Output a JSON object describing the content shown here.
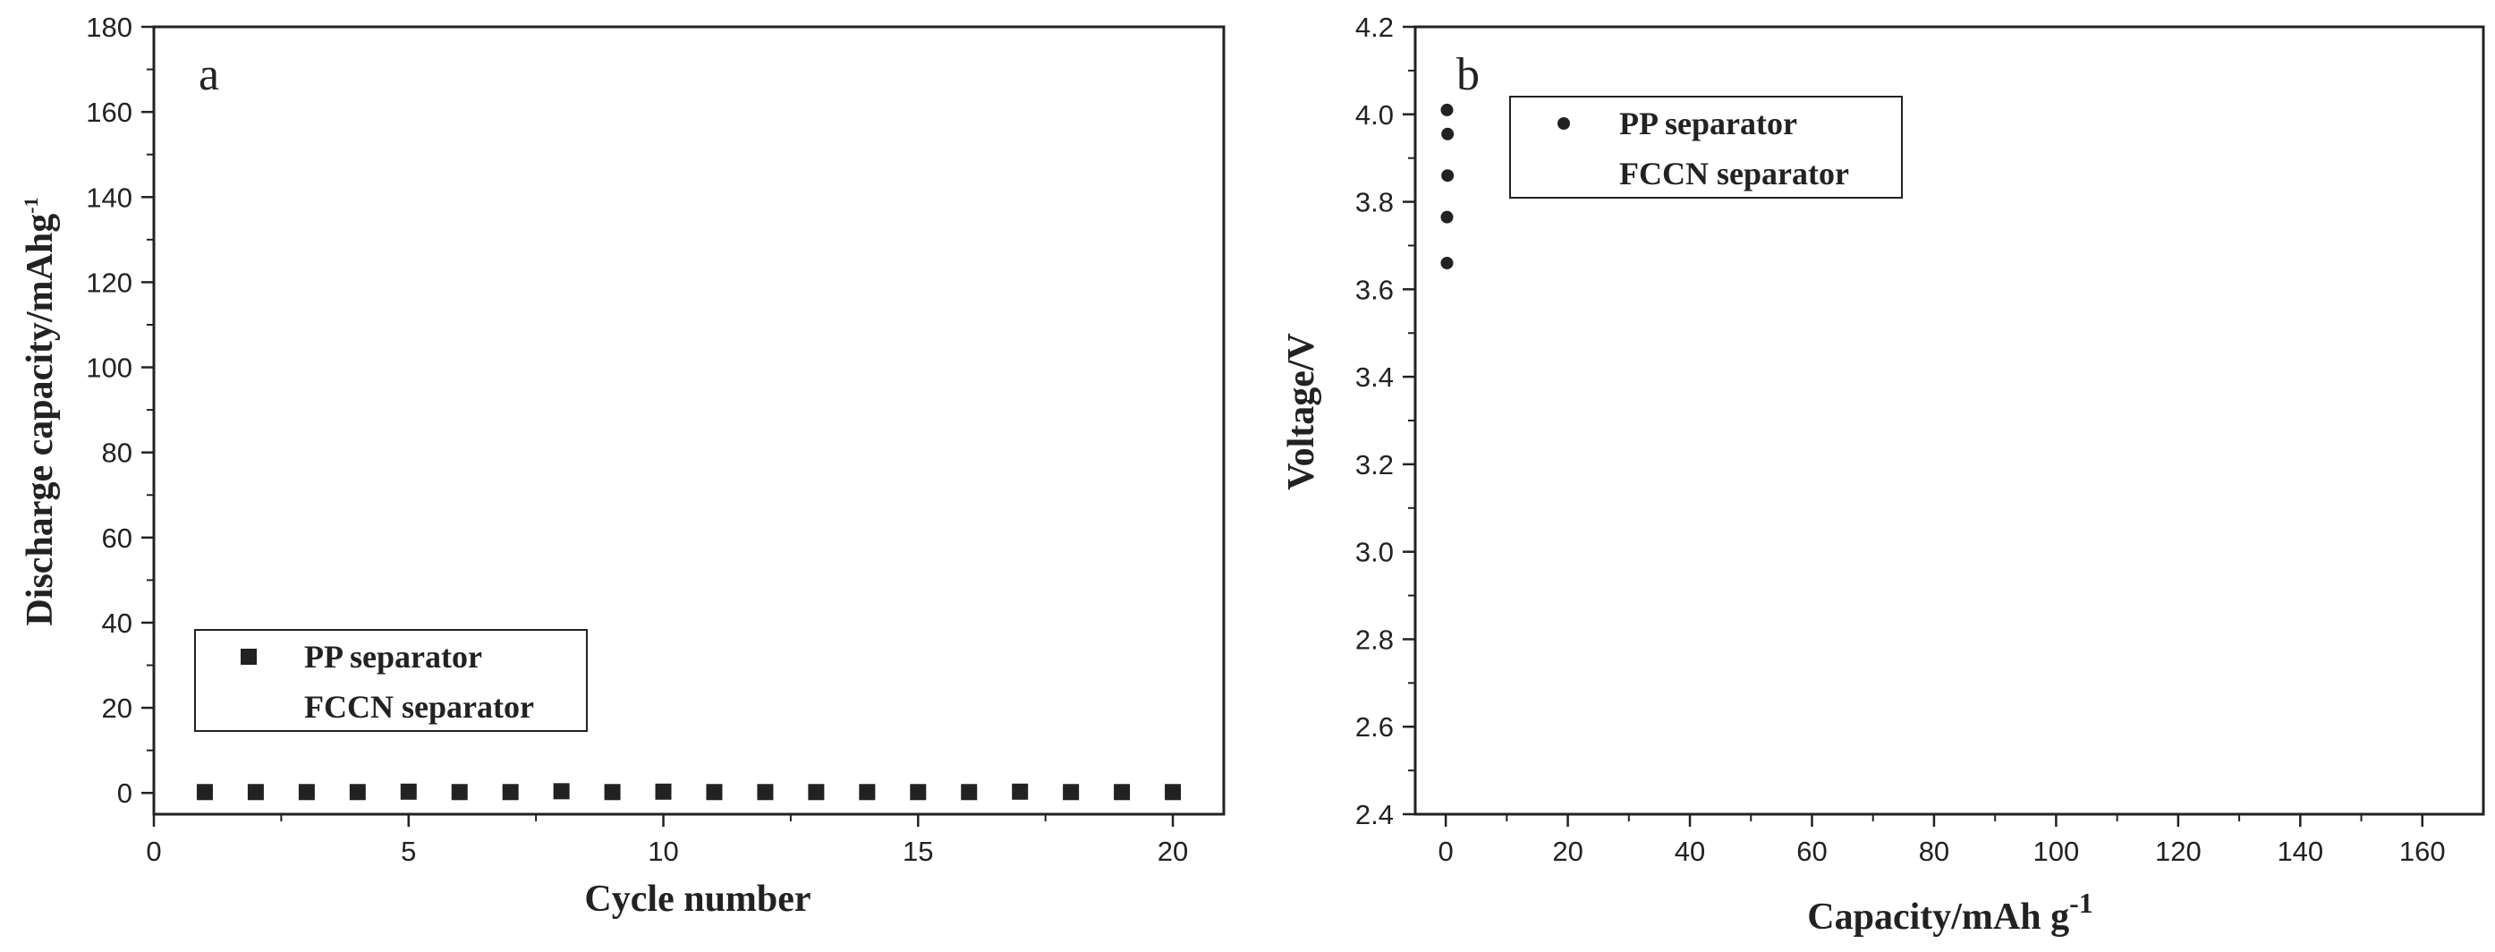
{
  "chart_data": [
    {
      "type": "scatter",
      "panel_label": "a",
      "xlabel": "Cycle number",
      "ylabel": "Discharge capacity/mAhg",
      "ylabel_superscript": "-1",
      "xlim": [
        0,
        21
      ],
      "ylim": [
        -5,
        180
      ],
      "xticks": [
        0,
        5,
        10,
        15,
        20
      ],
      "yticks": [
        0,
        20,
        40,
        60,
        80,
        100,
        120,
        140,
        160,
        180
      ],
      "grid": false,
      "legend_position": "lower-left",
      "series": [
        {
          "name": "PP separator",
          "marker": "square",
          "color": "#222222",
          "x": [
            1,
            2,
            3,
            4,
            5,
            6,
            7,
            8,
            9,
            10,
            11,
            12,
            13,
            14,
            15,
            16,
            17,
            18,
            19,
            20
          ],
          "y": [
            0.2,
            0.2,
            0.2,
            0.2,
            0.3,
            0.2,
            0.2,
            0.4,
            0.2,
            0.3,
            0.2,
            0.2,
            0.2,
            0.2,
            0.2,
            0.2,
            0.3,
            0.2,
            0.2,
            0.2
          ]
        },
        {
          "name": "FCCN separator",
          "marker": "none",
          "color": "#222222",
          "x": [],
          "y": []
        }
      ]
    },
    {
      "type": "scatter",
      "panel_label": "b",
      "xlabel": "Capacity/mAh g",
      "xlabel_superscript": "-1",
      "ylabel": "Voltage/V",
      "xlim": [
        -5,
        170
      ],
      "ylim": [
        2.4,
        4.2
      ],
      "xticks": [
        0,
        20,
        40,
        60,
        80,
        100,
        120,
        140,
        160
      ],
      "yticks": [
        2.4,
        2.6,
        2.8,
        3.0,
        3.2,
        3.4,
        3.6,
        3.8,
        4.0,
        4.2
      ],
      "ytick_labels": [
        "2.4",
        "2.6",
        "2.8",
        "3.0",
        "3.2",
        "3.4",
        "3.6",
        "3.8",
        "4.0",
        "4.2"
      ],
      "grid": false,
      "legend_position": "top-left",
      "series": [
        {
          "name": "PP separator",
          "marker": "dot",
          "color": "#222222",
          "x": [
            0.2,
            0.3,
            0.3,
            0.2,
            0.2
          ],
          "y": [
            4.01,
            3.955,
            3.86,
            3.765,
            3.66
          ]
        },
        {
          "name": "FCCN separator",
          "marker": "none",
          "color": "#222222",
          "x": [],
          "y": []
        }
      ]
    }
  ]
}
